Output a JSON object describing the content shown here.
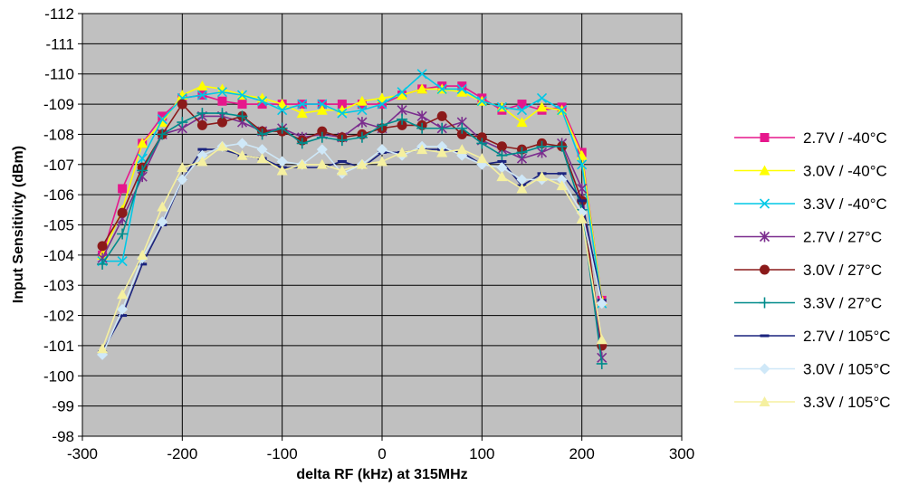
{
  "chart_data": {
    "type": "line",
    "title": "",
    "xlabel": "delta RF (kHz) at 315MHz",
    "ylabel": "Input Sensitivity (dBm)",
    "xlim": [
      -300,
      300
    ],
    "ylim": [
      -98,
      -112
    ],
    "y_axis_reversed": true,
    "xticks": [
      -300,
      -200,
      -100,
      0,
      100,
      200,
      300
    ],
    "yticks": [
      -112,
      -111,
      -110,
      -109,
      -108,
      -107,
      -106,
      -105,
      -104,
      -103,
      -102,
      -101,
      -100,
      -99,
      -98
    ],
    "grid": true,
    "plot_background": "#c0c0c0",
    "legend_position": "right",
    "x": [
      -280,
      -260,
      -240,
      -220,
      -200,
      -180,
      -160,
      -140,
      -120,
      -100,
      -80,
      -60,
      -40,
      -20,
      0,
      20,
      40,
      60,
      80,
      100,
      120,
      140,
      160,
      180,
      200,
      220
    ],
    "series": [
      {
        "name": "2.7V / -40°C",
        "color": "#e6178c",
        "marker": "square",
        "values": [
          -104.0,
          -106.2,
          -107.7,
          -108.6,
          -109.2,
          -109.3,
          -109.1,
          -109.0,
          -109.0,
          -109.0,
          -109.0,
          -109.0,
          -109.0,
          -109.0,
          -109.0,
          -109.3,
          -109.5,
          -109.6,
          -109.6,
          -109.2,
          -108.8,
          -109.0,
          -108.8,
          -108.9,
          -107.4,
          -102.5
        ]
      },
      {
        "name": "3.0V / -40°C",
        "color": "#ffff00",
        "marker": "triangle",
        "values": [
          -104.0,
          -105.5,
          -107.7,
          -108.4,
          -109.3,
          -109.6,
          -109.5,
          -109.3,
          -109.2,
          -109.0,
          -108.7,
          -108.8,
          -108.8,
          -109.1,
          -109.2,
          -109.3,
          -109.5,
          -109.5,
          -109.4,
          -109.1,
          -108.9,
          -108.4,
          -108.9,
          -108.8,
          -107.3,
          -102.5
        ]
      },
      {
        "name": "3.3V / -40°C",
        "color": "#00c8e6",
        "marker": "x",
        "values": [
          -103.8,
          -103.8,
          -107.2,
          -108.5,
          -109.2,
          -109.3,
          -109.4,
          -109.3,
          -109.1,
          -108.8,
          -109.0,
          -109.0,
          -108.7,
          -108.8,
          -109.0,
          -109.4,
          -110.0,
          -109.5,
          -109.5,
          -109.1,
          -108.9,
          -108.8,
          -109.2,
          -108.8,
          -107.0,
          -102.4
        ]
      },
      {
        "name": "2.7V / 27°C",
        "color": "#7b2d8e",
        "marker": "star",
        "values": [
          -103.9,
          -105.2,
          -106.6,
          -108.0,
          -108.2,
          -108.6,
          -108.6,
          -108.4,
          -108.1,
          -108.2,
          -107.9,
          -108.0,
          -107.9,
          -108.4,
          -108.2,
          -108.8,
          -108.6,
          -108.2,
          -108.4,
          -107.8,
          -107.5,
          -107.2,
          -107.4,
          -107.7,
          -106.2,
          -100.6
        ]
      },
      {
        "name": "3.0V / 27°C",
        "color": "#8b1a1a",
        "marker": "circle",
        "values": [
          -104.3,
          -105.4,
          -106.9,
          -108.0,
          -109.0,
          -108.3,
          -108.4,
          -108.6,
          -108.1,
          -108.1,
          -107.8,
          -108.1,
          -107.9,
          -108.0,
          -108.2,
          -108.3,
          -108.3,
          -108.6,
          -108.0,
          -107.9,
          -107.6,
          -107.5,
          -107.7,
          -107.6,
          -105.8,
          -101.0
        ]
      },
      {
        "name": "3.3V / 27°C",
        "color": "#008b8b",
        "marker": "plus",
        "values": [
          -103.7,
          -104.7,
          -106.8,
          -108.0,
          -108.4,
          -108.7,
          -108.7,
          -108.6,
          -108.0,
          -108.2,
          -107.7,
          -107.9,
          -107.8,
          -107.9,
          -108.3,
          -108.5,
          -108.2,
          -108.2,
          -108.2,
          -107.7,
          -107.3,
          -107.4,
          -107.6,
          -107.6,
          -105.5,
          -100.4
        ]
      },
      {
        "name": "2.7V / 105°C",
        "color": "#1a237e",
        "marker": "dash",
        "values": [
          -100.8,
          -102.0,
          -103.7,
          -105.0,
          -106.5,
          -107.5,
          -107.5,
          -107.3,
          -107.2,
          -106.9,
          -106.9,
          -106.9,
          -107.1,
          -106.9,
          -107.4,
          -107.4,
          -107.5,
          -107.5,
          -107.4,
          -107.0,
          -107.1,
          -106.3,
          -106.7,
          -106.7,
          -105.8,
          -102.5
        ]
      },
      {
        "name": "3.0V / 105°C",
        "color": "#cfe8f8",
        "marker": "diamond",
        "values": [
          -100.7,
          -102.2,
          -103.9,
          -105.1,
          -106.5,
          -107.3,
          -107.6,
          -107.7,
          -107.5,
          -107.1,
          -107.0,
          -107.5,
          -106.7,
          -107.0,
          -107.5,
          -107.3,
          -107.6,
          -107.6,
          -107.3,
          -107.0,
          -106.9,
          -106.5,
          -106.5,
          -106.5,
          -105.4,
          -102.4
        ]
      },
      {
        "name": "3.3V / 105°C",
        "color": "#f5f0a0",
        "marker": "triangle",
        "values": [
          -100.9,
          -102.7,
          -104.0,
          -105.6,
          -106.9,
          -107.1,
          -107.6,
          -107.3,
          -107.2,
          -106.8,
          -107.0,
          -107.0,
          -106.8,
          -107.0,
          -107.1,
          -107.4,
          -107.5,
          -107.4,
          -107.5,
          -107.2,
          -106.6,
          -106.2,
          -106.6,
          -106.3,
          -105.2,
          -101.2
        ]
      }
    ]
  }
}
